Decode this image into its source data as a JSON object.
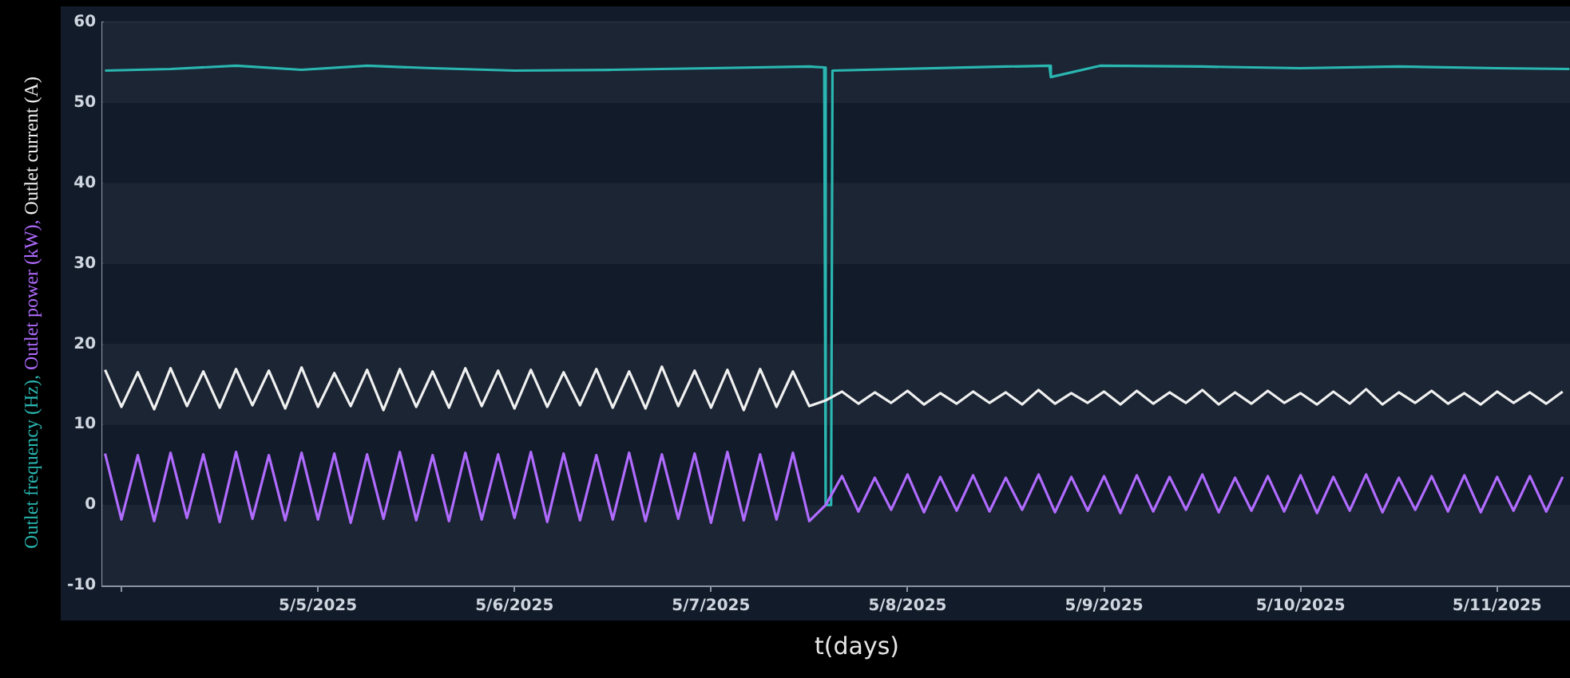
{
  "chart_data": {
    "type": "line",
    "xlabel": "t(days)",
    "xlim": [
      "2025-05-03T21:40",
      "2025-05-11T08:54"
    ],
    "xticks": [
      {
        "value": "2025-05-04",
        "label": null
      },
      {
        "value": "2025-05-05",
        "label": "5/5/2025"
      },
      {
        "value": "2025-05-06",
        "label": "5/6/2025"
      },
      {
        "value": "2025-05-07",
        "label": "5/7/2025"
      },
      {
        "value": "2025-05-08",
        "label": "5/8/2025"
      },
      {
        "value": "2025-05-09",
        "label": "5/9/2025"
      },
      {
        "value": "2025-05-10",
        "label": "5/10/2025"
      },
      {
        "value": "2025-05-11",
        "label": "5/11/2025"
      }
    ],
    "ylim": [
      -10,
      60
    ],
    "yticks": [
      -10,
      0,
      10,
      20,
      30,
      40,
      50,
      60
    ],
    "grid": "y",
    "legend": false,
    "marker": "none",
    "line_style": "solid",
    "x": [
      "2025-05-03T22:00",
      "2025-05-04T00:00",
      "2025-05-04T02:00",
      "2025-05-04T04:00",
      "2025-05-04T06:00",
      "2025-05-04T08:00",
      "2025-05-04T10:00",
      "2025-05-04T12:00",
      "2025-05-04T14:00",
      "2025-05-04T16:00",
      "2025-05-04T18:00",
      "2025-05-04T20:00",
      "2025-05-04T22:00",
      "2025-05-05T00:00",
      "2025-05-05T02:00",
      "2025-05-05T04:00",
      "2025-05-05T06:00",
      "2025-05-05T08:00",
      "2025-05-05T10:00",
      "2025-05-05T12:00",
      "2025-05-05T14:00",
      "2025-05-05T16:00",
      "2025-05-05T18:00",
      "2025-05-05T20:00",
      "2025-05-05T22:00",
      "2025-05-06T00:00",
      "2025-05-06T02:00",
      "2025-05-06T04:00",
      "2025-05-06T06:00",
      "2025-05-06T08:00",
      "2025-05-06T10:00",
      "2025-05-06T12:00",
      "2025-05-06T14:00",
      "2025-05-06T16:00",
      "2025-05-06T18:00",
      "2025-05-06T20:00",
      "2025-05-06T22:00",
      "2025-05-07T00:00",
      "2025-05-07T02:00",
      "2025-05-07T04:00",
      "2025-05-07T06:00",
      "2025-05-07T08:00",
      "2025-05-07T10:00",
      "2025-05-07T12:00",
      "2025-05-07T14:00",
      "2025-05-07T16:00",
      "2025-05-07T18:00",
      "2025-05-07T20:00",
      "2025-05-07T22:00",
      "2025-05-08T00:00",
      "2025-05-08T02:00",
      "2025-05-08T04:00",
      "2025-05-08T06:00",
      "2025-05-08T08:00",
      "2025-05-08T10:00",
      "2025-05-08T12:00",
      "2025-05-08T14:00",
      "2025-05-08T16:00",
      "2025-05-08T18:00",
      "2025-05-08T20:00",
      "2025-05-08T22:00",
      "2025-05-09T00:00",
      "2025-05-09T02:00",
      "2025-05-09T04:00",
      "2025-05-09T06:00",
      "2025-05-09T08:00",
      "2025-05-09T10:00",
      "2025-05-09T12:00",
      "2025-05-09T14:00",
      "2025-05-09T16:00",
      "2025-05-09T18:00",
      "2025-05-09T20:00",
      "2025-05-09T22:00",
      "2025-05-10T00:00",
      "2025-05-10T02:00",
      "2025-05-10T04:00",
      "2025-05-10T06:00",
      "2025-05-10T08:00",
      "2025-05-10T10:00",
      "2025-05-10T12:00",
      "2025-05-10T14:00",
      "2025-05-10T16:00",
      "2025-05-10T18:00",
      "2025-05-10T20:00",
      "2025-05-10T22:00",
      "2025-05-11T00:00",
      "2025-05-11T02:00",
      "2025-05-11T04:00",
      "2025-05-11T06:00",
      "2025-05-11T08:00"
    ],
    "series": [
      {
        "name": "Outlet frequency (Hz),",
        "color": "#2ab7b1",
        "x": [
          "2025-05-03T22:00",
          "2025-05-04T06:00",
          "2025-05-04T14:00",
          "2025-05-04T22:00",
          "2025-05-05T06:00",
          "2025-05-05T14:00",
          "2025-05-06T00:00",
          "2025-05-06T12:00",
          "2025-05-07T00:00",
          "2025-05-07T12:00",
          "2025-05-07T13:50",
          "2025-05-07T14:00",
          "2025-05-07T14:40",
          "2025-05-07T14:50",
          "2025-05-08T12:00",
          "2025-05-08T17:20",
          "2025-05-08T17:30",
          "2025-05-08T23:30",
          "2025-05-09T12:00",
          "2025-05-10T00:00",
          "2025-05-10T12:00",
          "2025-05-11T00:00",
          "2025-05-11T08:50"
        ],
        "values": [
          54,
          54.2,
          54.6,
          54.1,
          54.6,
          54.3,
          54,
          54.1,
          54.3,
          54.5,
          54.4,
          0,
          0,
          54,
          54.5,
          54.6,
          53.2,
          54.6,
          54.5,
          54.3,
          54.5,
          54.3,
          54.2
        ]
      },
      {
        "name": "Outlet power (kW),",
        "color": "#b06bff",
        "values": [
          6.4,
          -1.8,
          6.2,
          -2,
          6.5,
          -1.6,
          6.3,
          -2.1,
          6.6,
          -1.7,
          6.2,
          -1.9,
          6.5,
          -1.8,
          6.4,
          -2.2,
          6.3,
          -1.7,
          6.6,
          -1.9,
          6.2,
          -2,
          6.5,
          -1.8,
          6.3,
          -1.6,
          6.6,
          -2.1,
          6.4,
          -1.9,
          6.2,
          -1.8,
          6.5,
          -2,
          6.3,
          -1.7,
          6.4,
          -2.2,
          6.6,
          -1.9,
          6.3,
          -1.8,
          6.5,
          -2,
          0,
          3.6,
          -0.8,
          3.4,
          -0.6,
          3.8,
          -0.9,
          3.5,
          -0.7,
          3.7,
          -0.8,
          3.4,
          -0.6,
          3.8,
          -0.9,
          3.5,
          -0.7,
          3.6,
          -1,
          3.7,
          -0.8,
          3.5,
          -0.6,
          3.8,
          -0.9,
          3.4,
          -0.7,
          3.6,
          -0.8,
          3.7,
          -1,
          3.5,
          -0.7,
          3.8,
          -0.9,
          3.4,
          -0.6,
          3.6,
          -0.8,
          3.7,
          -0.9,
          3.5,
          -0.7,
          3.6,
          -0.8,
          3.5
        ]
      },
      {
        "name": "Outlet current (A)",
        "color": "#f0f0f0",
        "values": [
          16.8,
          12.2,
          16.5,
          11.9,
          17,
          12.3,
          16.6,
          12.1,
          16.9,
          12.4,
          16.7,
          12,
          17.1,
          12.2,
          16.4,
          12.3,
          16.8,
          11.8,
          16.9,
          12.2,
          16.6,
          12.1,
          17,
          12.3,
          16.7,
          12,
          16.8,
          12.2,
          16.5,
          12.4,
          16.9,
          12.1,
          16.6,
          12,
          17.2,
          12.3,
          16.7,
          12.1,
          16.8,
          11.8,
          16.9,
          12.2,
          16.6,
          12.3,
          13,
          14.1,
          12.6,
          14,
          12.7,
          14.2,
          12.5,
          13.9,
          12.6,
          14.1,
          12.7,
          14,
          12.5,
          14.3,
          12.6,
          13.9,
          12.7,
          14.1,
          12.5,
          14.2,
          12.6,
          14,
          12.7,
          14.3,
          12.5,
          14,
          12.6,
          14.2,
          12.7,
          13.9,
          12.5,
          14.1,
          12.6,
          14.4,
          12.5,
          14,
          12.7,
          14.2,
          12.6,
          13.9,
          12.5,
          14.1,
          12.7,
          14,
          12.6,
          14.1
        ]
      }
    ]
  }
}
